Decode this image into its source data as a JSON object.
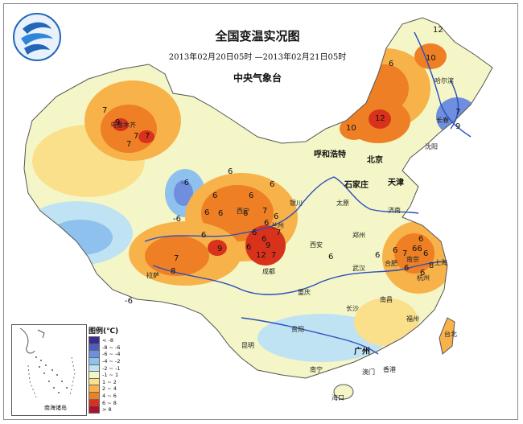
{
  "header": {
    "title": "全国变温实况图",
    "subtitle": "2013年02月20日05时 —2013年02月21日05时",
    "org": "中央气象台"
  },
  "legend": {
    "title": "图例(℃)",
    "items": [
      {
        "label": "< -8",
        "color": "#3b2c8f"
      },
      {
        "label": "-8 ~ -6",
        "color": "#4a5fc0"
      },
      {
        "label": "-6 ~ -4",
        "color": "#6f8fde"
      },
      {
        "label": "-4 ~ -2",
        "color": "#8fc1ee"
      },
      {
        "label": "-2 ~ -1",
        "color": "#bfe3f2"
      },
      {
        "label": "-1 ~ 1",
        "color": "#f5f6c7"
      },
      {
        "label": "1 ~ 2",
        "color": "#fbe08c"
      },
      {
        "label": "2 ~ 4",
        "color": "#f7b24a"
      },
      {
        "label": "4 ~ 6",
        "color": "#ee7f24"
      },
      {
        "label": "6 ~ 8",
        "color": "#d8321c"
      },
      {
        "label": "> 8",
        "color": "#b01030"
      }
    ]
  },
  "inset": {
    "label": "南海诸岛"
  },
  "cities": {
    "urumqi": "乌鲁木齐",
    "harbin": "哈尔滨",
    "changchun": "长春",
    "shenyang": "沈阳",
    "hohhot": "呼和浩特",
    "beijing": "北京",
    "tianjin": "天津",
    "shijiazhuang": "石家庄",
    "taiyuan": "太原",
    "jinan": "济南",
    "yinchuan": "银川",
    "xining": "西宁",
    "lanzhou": "兰州",
    "zhengzhou": "郑州",
    "xian": "西安",
    "lhasa": "拉萨",
    "chengdu": "成都",
    "nanjing": "南京",
    "hefei": "合肥",
    "shanghai": "上海",
    "wuhan": "武汉",
    "hangzhou": "杭州",
    "chongqing": "重庆",
    "changsha": "长沙",
    "nanchang": "南昌",
    "fuzhou": "福州",
    "taibei": "台北",
    "guiyang": "贵阳",
    "kunming": "昆明",
    "guangzhou": "广州",
    "nanning": "南宁",
    "macau": "澳门",
    "hongkong": "香港",
    "haikou": "海口"
  },
  "values": {
    "ne_top": "12",
    "ne_1": "10",
    "ne_2": "6",
    "ne_3": "7",
    "ne_4": "9",
    "nm_1": "12",
    "nm_2": "10",
    "xj_1": "7",
    "xj_2": "9",
    "xj_3": "7",
    "xj_4": "7",
    "xj_5": "7",
    "qh_1": "-6",
    "qh_2": "-6",
    "c_1": "6",
    "c_2": "6",
    "c_3": "6",
    "c_4": "6",
    "c_5": "6",
    "c_6": "6",
    "c_7": "6",
    "c_8": "7",
    "c_9": "6",
    "c_10": "6",
    "c_11": "6",
    "c_12": "6",
    "c_13": "7",
    "c_14": "6",
    "c_15": "6",
    "c_16": "12",
    "c_17": "7",
    "c_18": "9",
    "c_19": "9",
    "t_1": "7",
    "t_2": "8",
    "t_3": "6",
    "t_4": "-6",
    "e_1": "6",
    "e_2": "6",
    "e_3": "7",
    "e_4": "66",
    "e_5": "6",
    "e_6": "8",
    "e_7": "6",
    "e_8": "6",
    "e_9": "6"
  },
  "colors": {
    "river": "#2a4fbf",
    "border": "#555555",
    "logo_blue": "#2366b8"
  }
}
